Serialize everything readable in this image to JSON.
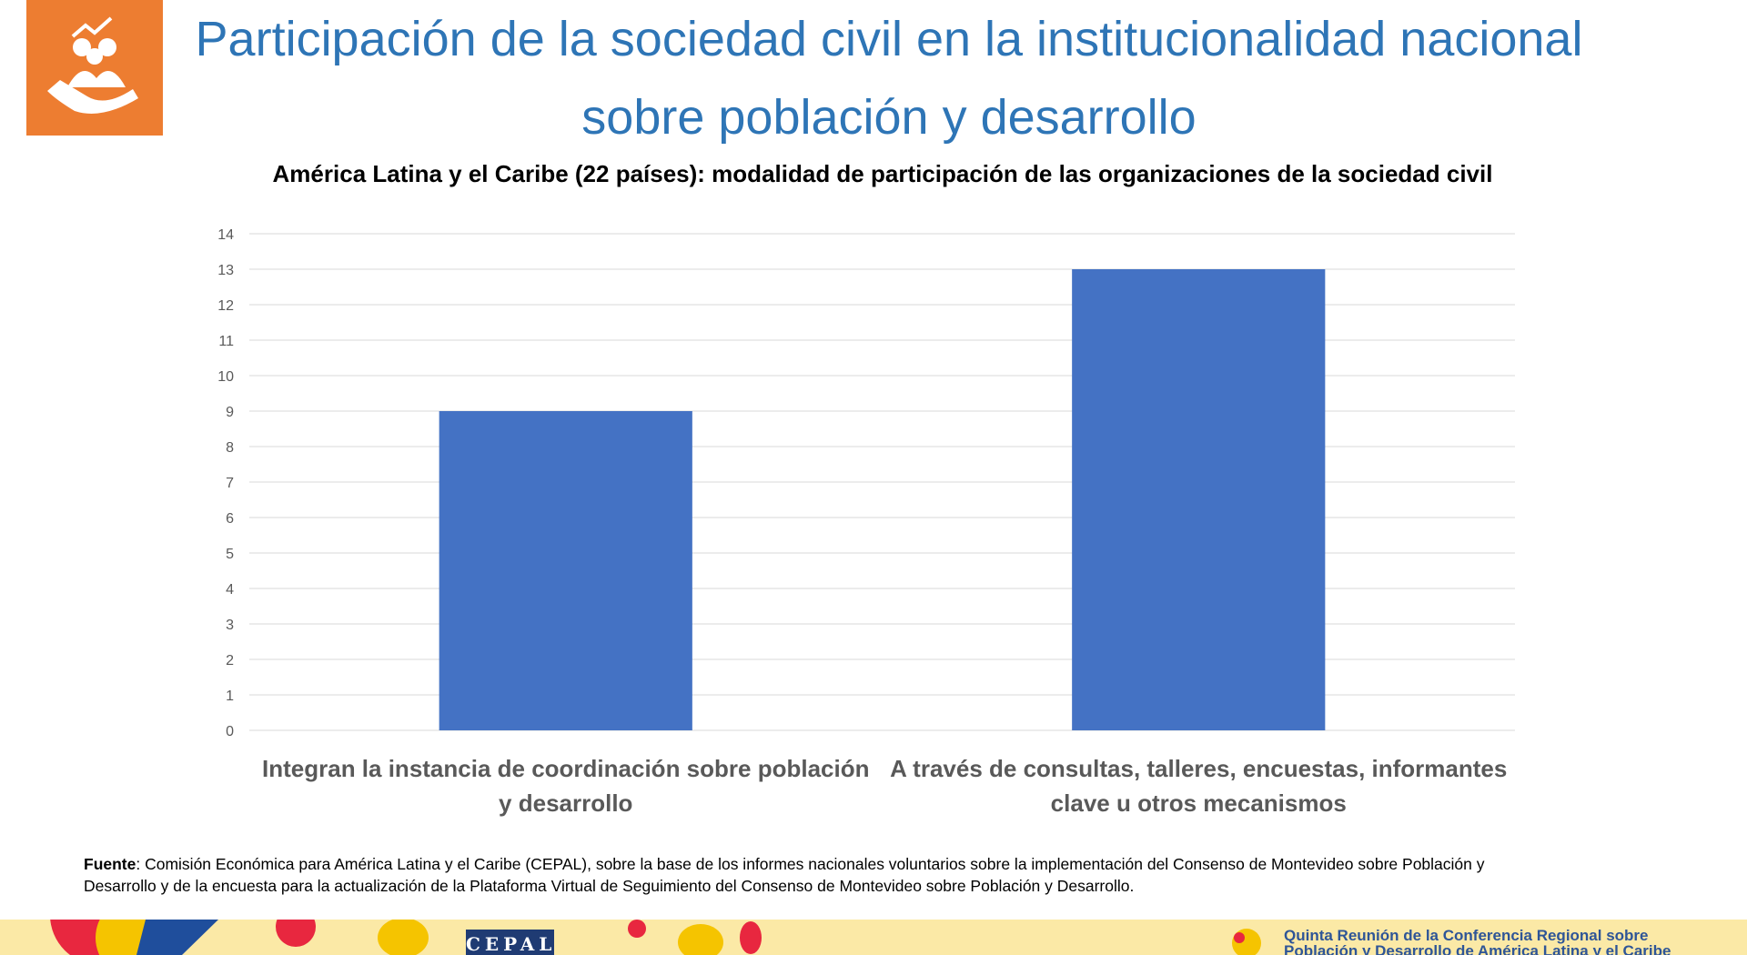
{
  "chart_data": {
    "type": "bar",
    "title": "Participación de la sociedad civil en la institucionalidad nacional sobre población y desarrollo",
    "subtitle": "América Latina y el Caribe (22 países): modalidad de participación de las organizaciones de la sociedad civil",
    "categories": [
      "Integran la instancia de coordinación sobre población y desarrollo",
      "A través de consultas, talleres, encuestas, informantes clave u otros mecanismos"
    ],
    "values": [
      9,
      13
    ],
    "color": "#4472c4",
    "ylim": [
      0,
      14
    ],
    "yticks": [
      0,
      1,
      2,
      3,
      4,
      5,
      6,
      7,
      8,
      9,
      10,
      11,
      12,
      13,
      14
    ],
    "grid": true,
    "source": {
      "label": "Fuente",
      "text": ": Comisión Económica para América Latina y el Caribe (CEPAL), sobre la base de los informes nacionales voluntarios sobre la implementación del Consenso de Montevideo sobre Población y Desarrollo y de la encuesta para la actualización de la Plataforma Virtual de Seguimiento del Consenso de Montevideo sobre Población y Desarrollo."
    }
  },
  "footer": {
    "logo": "CEPAL",
    "conference": "Quinta Reunión de la Conferencia Regional sobre Población y Desarrollo de América Latina y el Caribe"
  }
}
